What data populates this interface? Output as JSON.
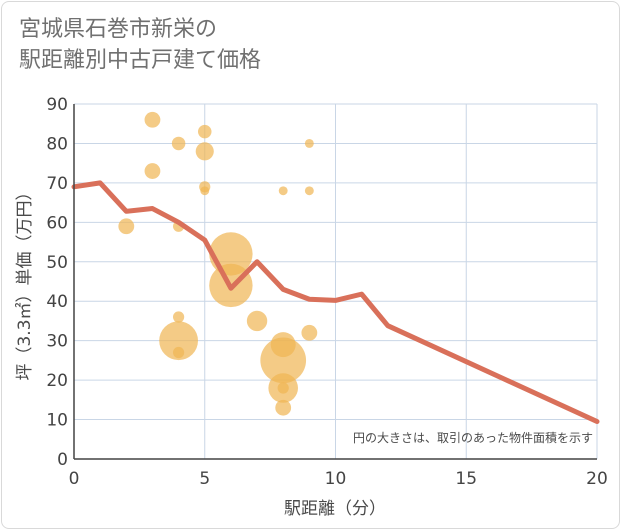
{
  "header": {
    "title_line1": "宮城県石巻市新栄の",
    "title_line2": "駅距離別中古戸建て価格"
  },
  "chart_data": {
    "type": "scatter",
    "title": "宮城県石巻市新栄の駅距離別中古戸建て価格",
    "xlabel": "駅距離（分）",
    "ylabel": "坪（3.3㎡）単価（万円）",
    "xlim": [
      0,
      20
    ],
    "ylim": [
      0,
      90
    ],
    "xticks": [
      0,
      5,
      10,
      15,
      20
    ],
    "yticks": [
      0,
      10,
      20,
      30,
      40,
      50,
      60,
      70,
      80,
      90
    ],
    "grid": true,
    "annotation": "円の大きさは、取引のあった物件面積を示す",
    "colors": {
      "bubble": "#f0b552",
      "line": "#d9705a",
      "grid": "#c9d6e6",
      "axis": "#444444"
    },
    "bubbles": [
      {
        "x": 2,
        "y": 59,
        "size": 3
      },
      {
        "x": 3,
        "y": 86,
        "size": 3
      },
      {
        "x": 3,
        "y": 73,
        "size": 3
      },
      {
        "x": 4,
        "y": 80,
        "size": 2.5
      },
      {
        "x": 4,
        "y": 59,
        "size": 2
      },
      {
        "x": 4,
        "y": 36,
        "size": 2
      },
      {
        "x": 4,
        "y": 30,
        "size": 8
      },
      {
        "x": 4,
        "y": 27,
        "size": 2
      },
      {
        "x": 5,
        "y": 83,
        "size": 2.5
      },
      {
        "x": 5,
        "y": 78,
        "size": 3.5
      },
      {
        "x": 5,
        "y": 69,
        "size": 2
      },
      {
        "x": 5,
        "y": 68,
        "size": 1.5
      },
      {
        "x": 6,
        "y": 52,
        "size": 9
      },
      {
        "x": 6,
        "y": 44,
        "size": 9
      },
      {
        "x": 7,
        "y": 35,
        "size": 4
      },
      {
        "x": 8,
        "y": 68,
        "size": 1.5
      },
      {
        "x": 8,
        "y": 29,
        "size": 5
      },
      {
        "x": 8,
        "y": 25,
        "size": 9.5
      },
      {
        "x": 8,
        "y": 18,
        "size": 6
      },
      {
        "x": 8,
        "y": 18,
        "size": 2
      },
      {
        "x": 8,
        "y": 13,
        "size": 3
      },
      {
        "x": 9,
        "y": 80,
        "size": 1.5
      },
      {
        "x": 9,
        "y": 68,
        "size": 1.5
      },
      {
        "x": 9,
        "y": 32,
        "size": 3
      }
    ],
    "trend": {
      "x": [
        0,
        1,
        2,
        3,
        4,
        5,
        6,
        7,
        8,
        9,
        10,
        11,
        12,
        20
      ],
      "y": [
        69,
        70,
        62.8,
        63.5,
        60,
        55.5,
        43.3,
        50,
        43,
        40.5,
        40.2,
        41.8,
        33.8,
        9.5
      ]
    }
  }
}
